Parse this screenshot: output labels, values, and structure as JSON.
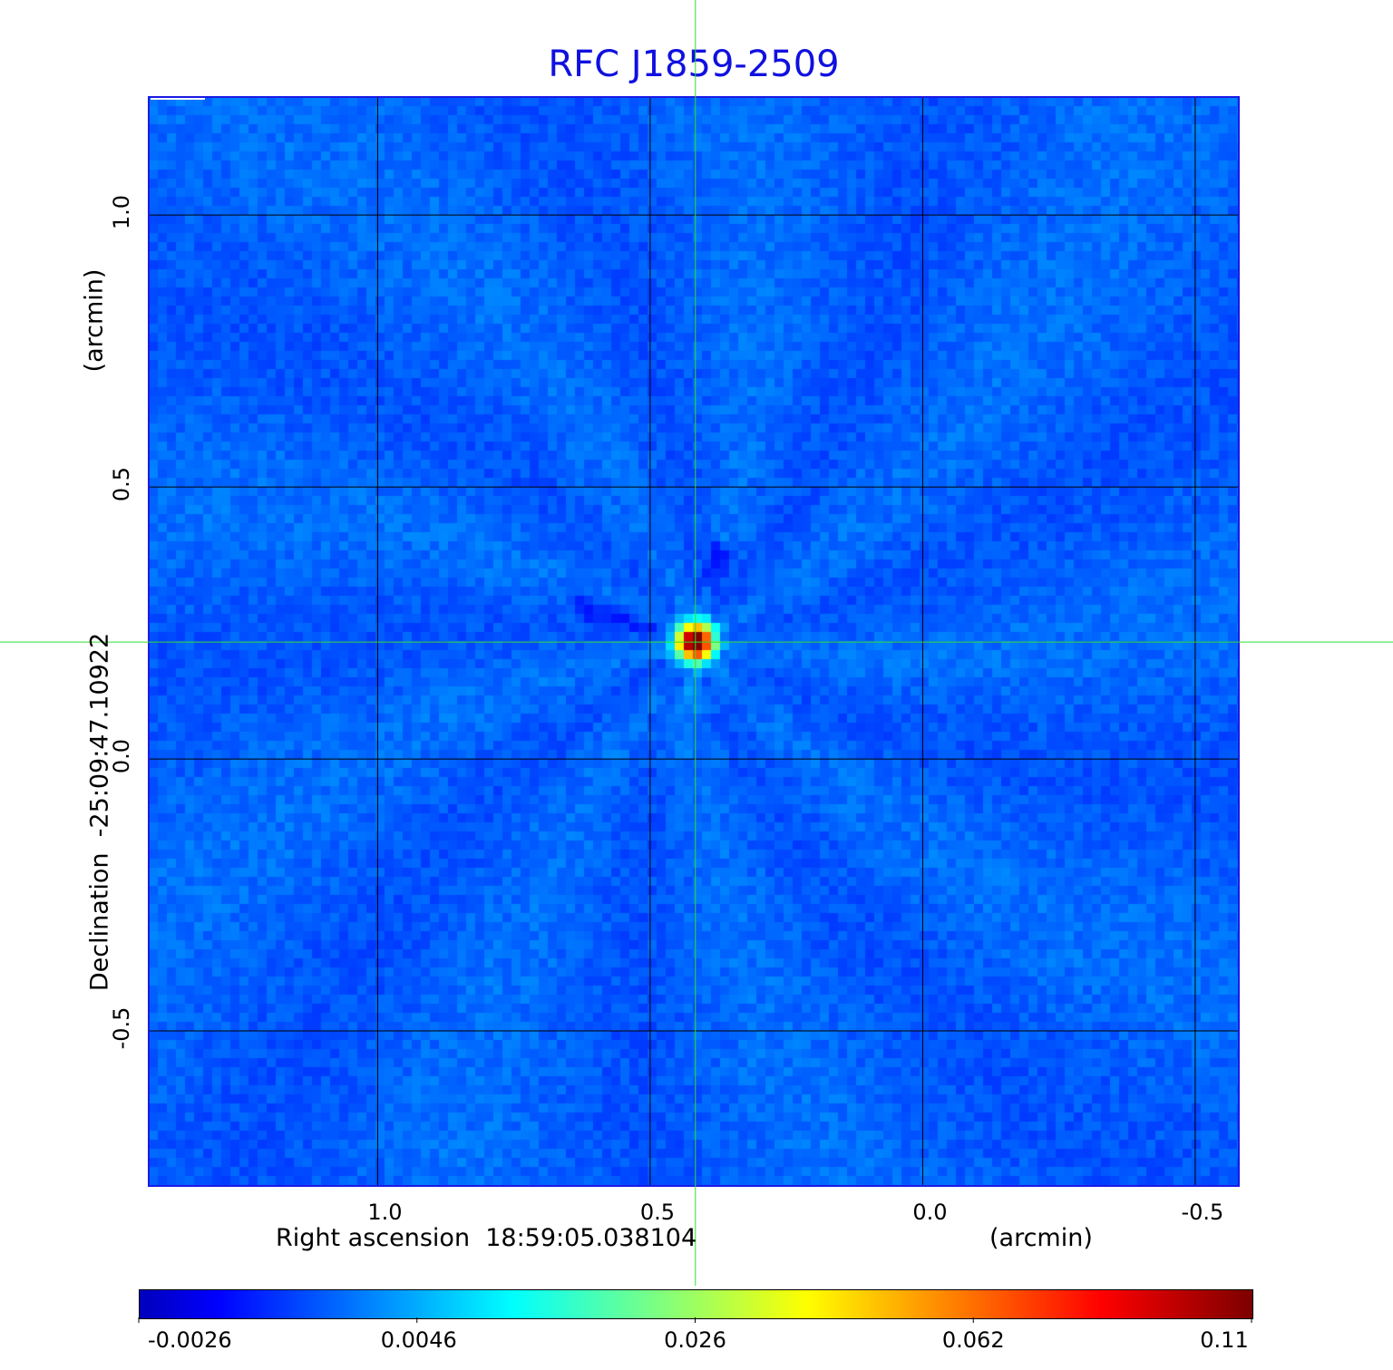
{
  "chart_data": {
    "type": "heatmap",
    "title": "RFC J1859-2509",
    "xlabel": "Right ascension  18:59:05.038104",
    "xunit": "(arcmin)",
    "ylabel": "Declination  -25:09:47.10922",
    "yunit": "(arcmin)",
    "xlim": [
      1.42,
      -0.58
    ],
    "ylim": [
      -0.785,
      1.217
    ],
    "xticks": [
      1.0,
      0.5,
      0.0,
      -0.5
    ],
    "xtick_labels": [
      "1.0",
      "0.5",
      "0.0",
      "-0.5"
    ],
    "yticks": [
      1.0,
      0.5,
      0.0,
      -0.5
    ],
    "ytick_labels": [
      "1.0",
      "0.5",
      "0.0",
      "-0.5"
    ],
    "grid": true,
    "crosshair": {
      "x": 0.417,
      "y": 0.215
    },
    "source_peak": {
      "x": 0.417,
      "y": 0.215,
      "value": 0.11
    },
    "colormap": "jet",
    "colorbar": {
      "ticks": [
        "-0.0026",
        "0.0046",
        "0.026",
        "0.062",
        "0.11"
      ],
      "range": [
        -0.0026,
        0.11
      ],
      "placement": "bottom"
    }
  },
  "colors": {
    "title": "#1010e0",
    "crosshair": "#33dd33",
    "grid": "#000000",
    "frame": "#1a1ae6"
  }
}
